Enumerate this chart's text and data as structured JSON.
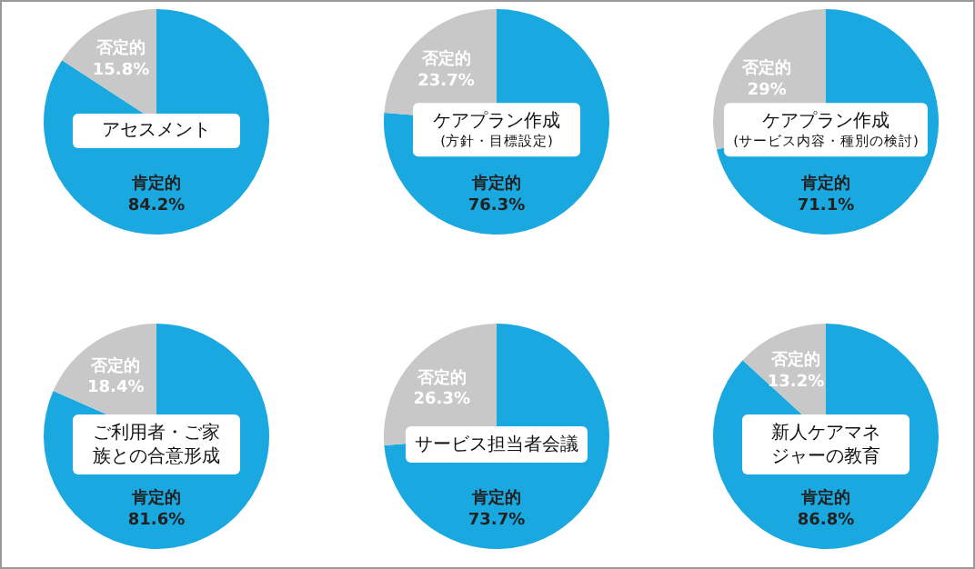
{
  "chart_data": [
    {
      "type": "pie",
      "title": "アセスメント",
      "categories": [
        "肯定的",
        "否定的"
      ],
      "values": [
        84.2,
        15.8
      ],
      "colors": [
        "#1aa8e0",
        "#c8c8c8"
      ],
      "value_labels": [
        "84.2%",
        "15.8%"
      ]
    },
    {
      "type": "pie",
      "title": "ケアプラン作成",
      "subtitle": "(方針・目標設定)",
      "categories": [
        "肯定的",
        "否定的"
      ],
      "values": [
        76.3,
        23.7
      ],
      "colors": [
        "#1aa8e0",
        "#c8c8c8"
      ],
      "value_labels": [
        "76.3%",
        "23.7%"
      ]
    },
    {
      "type": "pie",
      "title": "ケアプラン作成",
      "subtitle": "(サービス内容・種別の検討)",
      "categories": [
        "肯定的",
        "否定的"
      ],
      "values": [
        71.1,
        29
      ],
      "colors": [
        "#1aa8e0",
        "#c8c8c8"
      ],
      "value_labels": [
        "71.1%",
        "29%"
      ]
    },
    {
      "type": "pie",
      "title": "ご利用者・ご家族との合意形成",
      "categories": [
        "肯定的",
        "否定的"
      ],
      "values": [
        81.6,
        18.4
      ],
      "colors": [
        "#1aa8e0",
        "#c8c8c8"
      ],
      "value_labels": [
        "81.6%",
        "18.4%"
      ]
    },
    {
      "type": "pie",
      "title": "サービス担当者会議",
      "categories": [
        "肯定的",
        "否定的"
      ],
      "values": [
        73.7,
        26.3
      ],
      "colors": [
        "#1aa8e0",
        "#c8c8c8"
      ],
      "value_labels": [
        "73.7%",
        "26.3%"
      ]
    },
    {
      "type": "pie",
      "title": "新人ケアマネジャーの教育",
      "categories": [
        "肯定的",
        "否定的"
      ],
      "values": [
        86.8,
        13.2
      ],
      "colors": [
        "#1aa8e0",
        "#c8c8c8"
      ],
      "value_labels": [
        "86.8%",
        "13.2%"
      ]
    }
  ]
}
